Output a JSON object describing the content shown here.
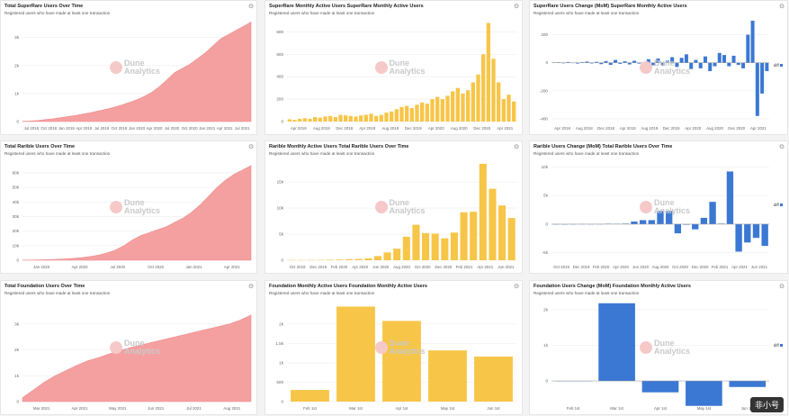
{
  "colors": {
    "pink": "#f5a0a0",
    "yellow": "#f7c548",
    "blue": "#3b78d4"
  },
  "watermark": {
    "line1": "Dune",
    "line2": "Analytics"
  },
  "brand": {
    "label": "非小号"
  },
  "panels": [
    {
      "title": "Total SuperRare Users Over Time",
      "subtitle": "Registered users who have made at least one transaction"
    },
    {
      "title": "SuperRare Monthly Active Users   SuperRare Monthly Active Users",
      "subtitle": "Registered users who have made at least one transaction"
    },
    {
      "title": "SuperRare Users Change (MoM)   SuperRare Monthly Active Users",
      "subtitle": "Registered users who have made at least one transaction",
      "legend": "diff"
    },
    {
      "title": "Total Rarible Users Over Time",
      "subtitle": "Registered users who have made at least one transaction"
    },
    {
      "title": "Rarible Monthly Active Users   Total Rarible Users Over Time",
      "subtitle": "Registered users who have made at least one transaction"
    },
    {
      "title": "Rarible Users Change (MoM)   Total Rarible Users Over Time",
      "subtitle": "Registered users who have made at least one transaction",
      "legend": "diff"
    },
    {
      "title": "Total Foundation Users Over Time",
      "subtitle": "Registered users who have made at least one transaction"
    },
    {
      "title": "Foundation Monthly Active Users   Foundation Monthly Active Users",
      "subtitle": "Registered users who have made at least one transaction"
    },
    {
      "title": "Foundation Users Change (MoM)   Foundation Monthly Active Users",
      "subtitle": "Registered users who have made at least one transaction",
      "legend": "diff"
    }
  ],
  "chart_data": [
    {
      "type": "area",
      "xticks": [
        "Jul 2018",
        "Oct 2018",
        "Jan 2019",
        "Apr 2019",
        "Jul 2019",
        "Oct 2019",
        "Jan 2020",
        "Apr 2020",
        "Jul 2020",
        "Oct 2020",
        "Jan 2021",
        "Apr 2021",
        "Jul 2021"
      ],
      "yticks": [
        "0",
        "1k",
        "2k",
        "3k"
      ],
      "ylim": [
        0,
        3600
      ],
      "values": [
        10,
        20,
        40,
        70,
        100,
        140,
        180,
        220,
        270,
        320,
        380,
        440,
        510,
        590,
        680,
        780,
        900,
        1050,
        1250,
        1500,
        1750,
        1900,
        2050,
        2250,
        2450,
        2700,
        2950,
        3100,
        3250,
        3400,
        3550
      ]
    },
    {
      "type": "bar",
      "xticks": [
        "Apr 2018",
        "Aug 2018",
        "Dec 2018",
        "Apr 2019",
        "Aug 2019",
        "Dec 2019",
        "Apr 2020",
        "Aug 2020",
        "Dec 2020",
        "Apr 2021"
      ],
      "yticks": [
        "0",
        "200",
        "400",
        "600",
        "800"
      ],
      "ylim": [
        0,
        900
      ],
      "values": [
        20,
        15,
        25,
        30,
        25,
        40,
        35,
        45,
        50,
        40,
        60,
        55,
        50,
        45,
        55,
        60,
        70,
        50,
        60,
        80,
        90,
        110,
        130,
        140,
        120,
        150,
        170,
        160,
        200,
        220,
        200,
        230,
        270,
        300,
        250,
        280,
        350,
        420,
        600,
        880,
        560,
        350,
        200,
        240,
        180
      ]
    },
    {
      "type": "bar",
      "xticks": [
        "Apr 2018",
        "Aug 2018",
        "Dec 2018",
        "Apr 2019",
        "Aug 2019",
        "Dec 2019",
        "Apr 2020",
        "Aug 2020",
        "Dec 2020",
        "Apr 2021"
      ],
      "yticks": [
        "200",
        "0",
        "-200",
        "-400"
      ],
      "ylim": [
        -420,
        300
      ],
      "values": [
        2,
        3,
        -4,
        5,
        -3,
        -6,
        4,
        8,
        -5,
        6,
        -10,
        12,
        -15,
        20,
        -8,
        10,
        -12,
        14,
        -6,
        -20,
        25,
        -18,
        30,
        -22,
        15,
        40,
        -30,
        35,
        60,
        -45,
        20,
        -40,
        45,
        -60,
        -25,
        70,
        55,
        -25,
        50,
        -15,
        -40,
        200,
        300,
        -380,
        -220,
        -60
      ]
    },
    {
      "type": "area",
      "xticks": [
        "Jan 2020",
        "Apr 2020",
        "Jul 2020",
        "Oct 2020",
        "Jan 2021",
        "Apr 2021"
      ],
      "yticks": [
        "0",
        "10k",
        "20k",
        "30k",
        "40k",
        "50k",
        "60k"
      ],
      "ylim": [
        0,
        68000
      ],
      "values": [
        100,
        150,
        250,
        400,
        600,
        900,
        1300,
        1800,
        2500,
        3500,
        5000,
        7000,
        10000,
        14000,
        17000,
        19000,
        21000,
        23000,
        26000,
        29000,
        33000,
        38000,
        44000,
        50000,
        55000,
        59000,
        62000,
        65000
      ]
    },
    {
      "type": "bar",
      "xticks": [
        "Oct 2019",
        "Dec 2019",
        "Feb 2020",
        "Apr 2020",
        "Jun 2020",
        "Aug 2020",
        "Oct 2020",
        "Dec 2020",
        "Feb 2021",
        "Apr 2021",
        "Jun 2021"
      ],
      "yticks": [
        "0",
        "5k",
        "10k",
        "15k"
      ],
      "ylim": [
        0,
        19000
      ],
      "values": [
        60,
        40,
        50,
        80,
        100,
        120,
        200,
        250,
        350,
        800,
        1500,
        2200,
        4500,
        6800,
        5200,
        5100,
        4200,
        5300,
        9200,
        9300,
        18500,
        13700,
        10500,
        8100
      ]
    },
    {
      "type": "bar",
      "xticks": [
        "Oct 2019",
        "Dec 2019",
        "Feb 2020",
        "Apr 2020",
        "Jun 2020",
        "Aug 2020",
        "Oct 2020",
        "Dec 2020",
        "Feb 2021",
        "Apr 2021",
        "Jun 2021"
      ],
      "yticks": [
        "10k",
        "5k",
        "0",
        "-5k"
      ],
      "ylim": [
        -6300,
        11000
      ],
      "values": [
        10,
        -20,
        15,
        30,
        20,
        25,
        80,
        50,
        100,
        450,
        700,
        700,
        2300,
        2300,
        -1600,
        -100,
        -900,
        1100,
        3900,
        100,
        9200,
        -4800,
        -3200,
        -2400,
        -3800
      ]
    },
    {
      "type": "area",
      "xticks": [
        "Mar 2021",
        "Apr 2021",
        "May 2021",
        "Jun 2021",
        "Jul 2021",
        "Aug 2021"
      ],
      "yticks": [
        "0",
        "1k",
        "2k",
        "3k"
      ],
      "ylim": [
        0,
        3900
      ],
      "values": [
        150,
        450,
        750,
        1000,
        1200,
        1400,
        1580,
        1700,
        1850,
        1980,
        2100,
        2200,
        2300,
        2400,
        2500,
        2600,
        2700,
        2800,
        2900,
        3000,
        3150,
        3350
      ]
    },
    {
      "type": "bar",
      "xticks": [
        "Feb 1st",
        "Mar 1st",
        "Apr 1st",
        "May 1st",
        "Jun 1st"
      ],
      "yticks": [
        "0",
        "500",
        "1k",
        "1.5k",
        "2k"
      ],
      "ylim": [
        0,
        2600
      ],
      "values": [
        300,
        2450,
        2080,
        1320,
        1160
      ]
    },
    {
      "type": "bar",
      "xticks": [
        "Feb 1st",
        "Mar 1st",
        "Apr 1st",
        "May 1st",
        "Jun 1st"
      ],
      "yticks": [
        "2k",
        "1k",
        "0"
      ],
      "ylim": [
        -580,
        2250
      ],
      "values": [
        -10,
        2180,
        -320,
        -700,
        -170
      ]
    }
  ]
}
